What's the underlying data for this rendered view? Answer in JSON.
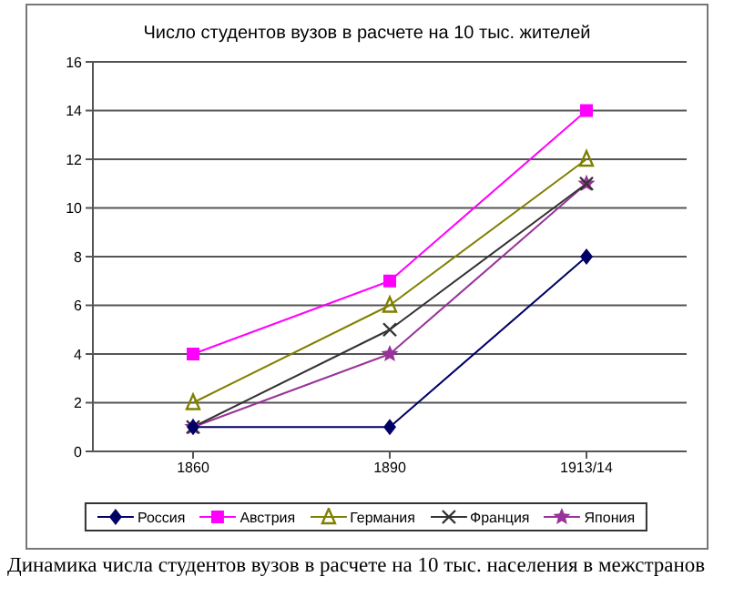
{
  "chart_data": {
    "type": "line",
    "title": "Число студентов вузов в расчете на 10 тыс. жителей",
    "categories": [
      "1860",
      "1890",
      "1913/14"
    ],
    "series": [
      {
        "name": "Россия",
        "color": "#000066",
        "marker": "diamond",
        "values": [
          1,
          1,
          8
        ]
      },
      {
        "name": "Австрия",
        "color": "#ff00ff",
        "marker": "square",
        "values": [
          4,
          7,
          14
        ]
      },
      {
        "name": "Германия",
        "color": "#808000",
        "marker": "triangle",
        "values": [
          2,
          6,
          12
        ]
      },
      {
        "name": "Франция",
        "color": "#333333",
        "marker": "cross",
        "values": [
          1,
          5,
          11
        ]
      },
      {
        "name": "Япония",
        "color": "#993399",
        "marker": "star",
        "values": [
          1,
          4,
          11
        ]
      }
    ],
    "ylim": [
      0,
      16
    ],
    "yticks": [
      0,
      2,
      4,
      6,
      8,
      10,
      12,
      14,
      16
    ],
    "grid": "y",
    "legend": "bottom",
    "annotations": [
      "Динамика числа студентов вузов в расчете на 10 тыс. населения в межстранов"
    ]
  }
}
